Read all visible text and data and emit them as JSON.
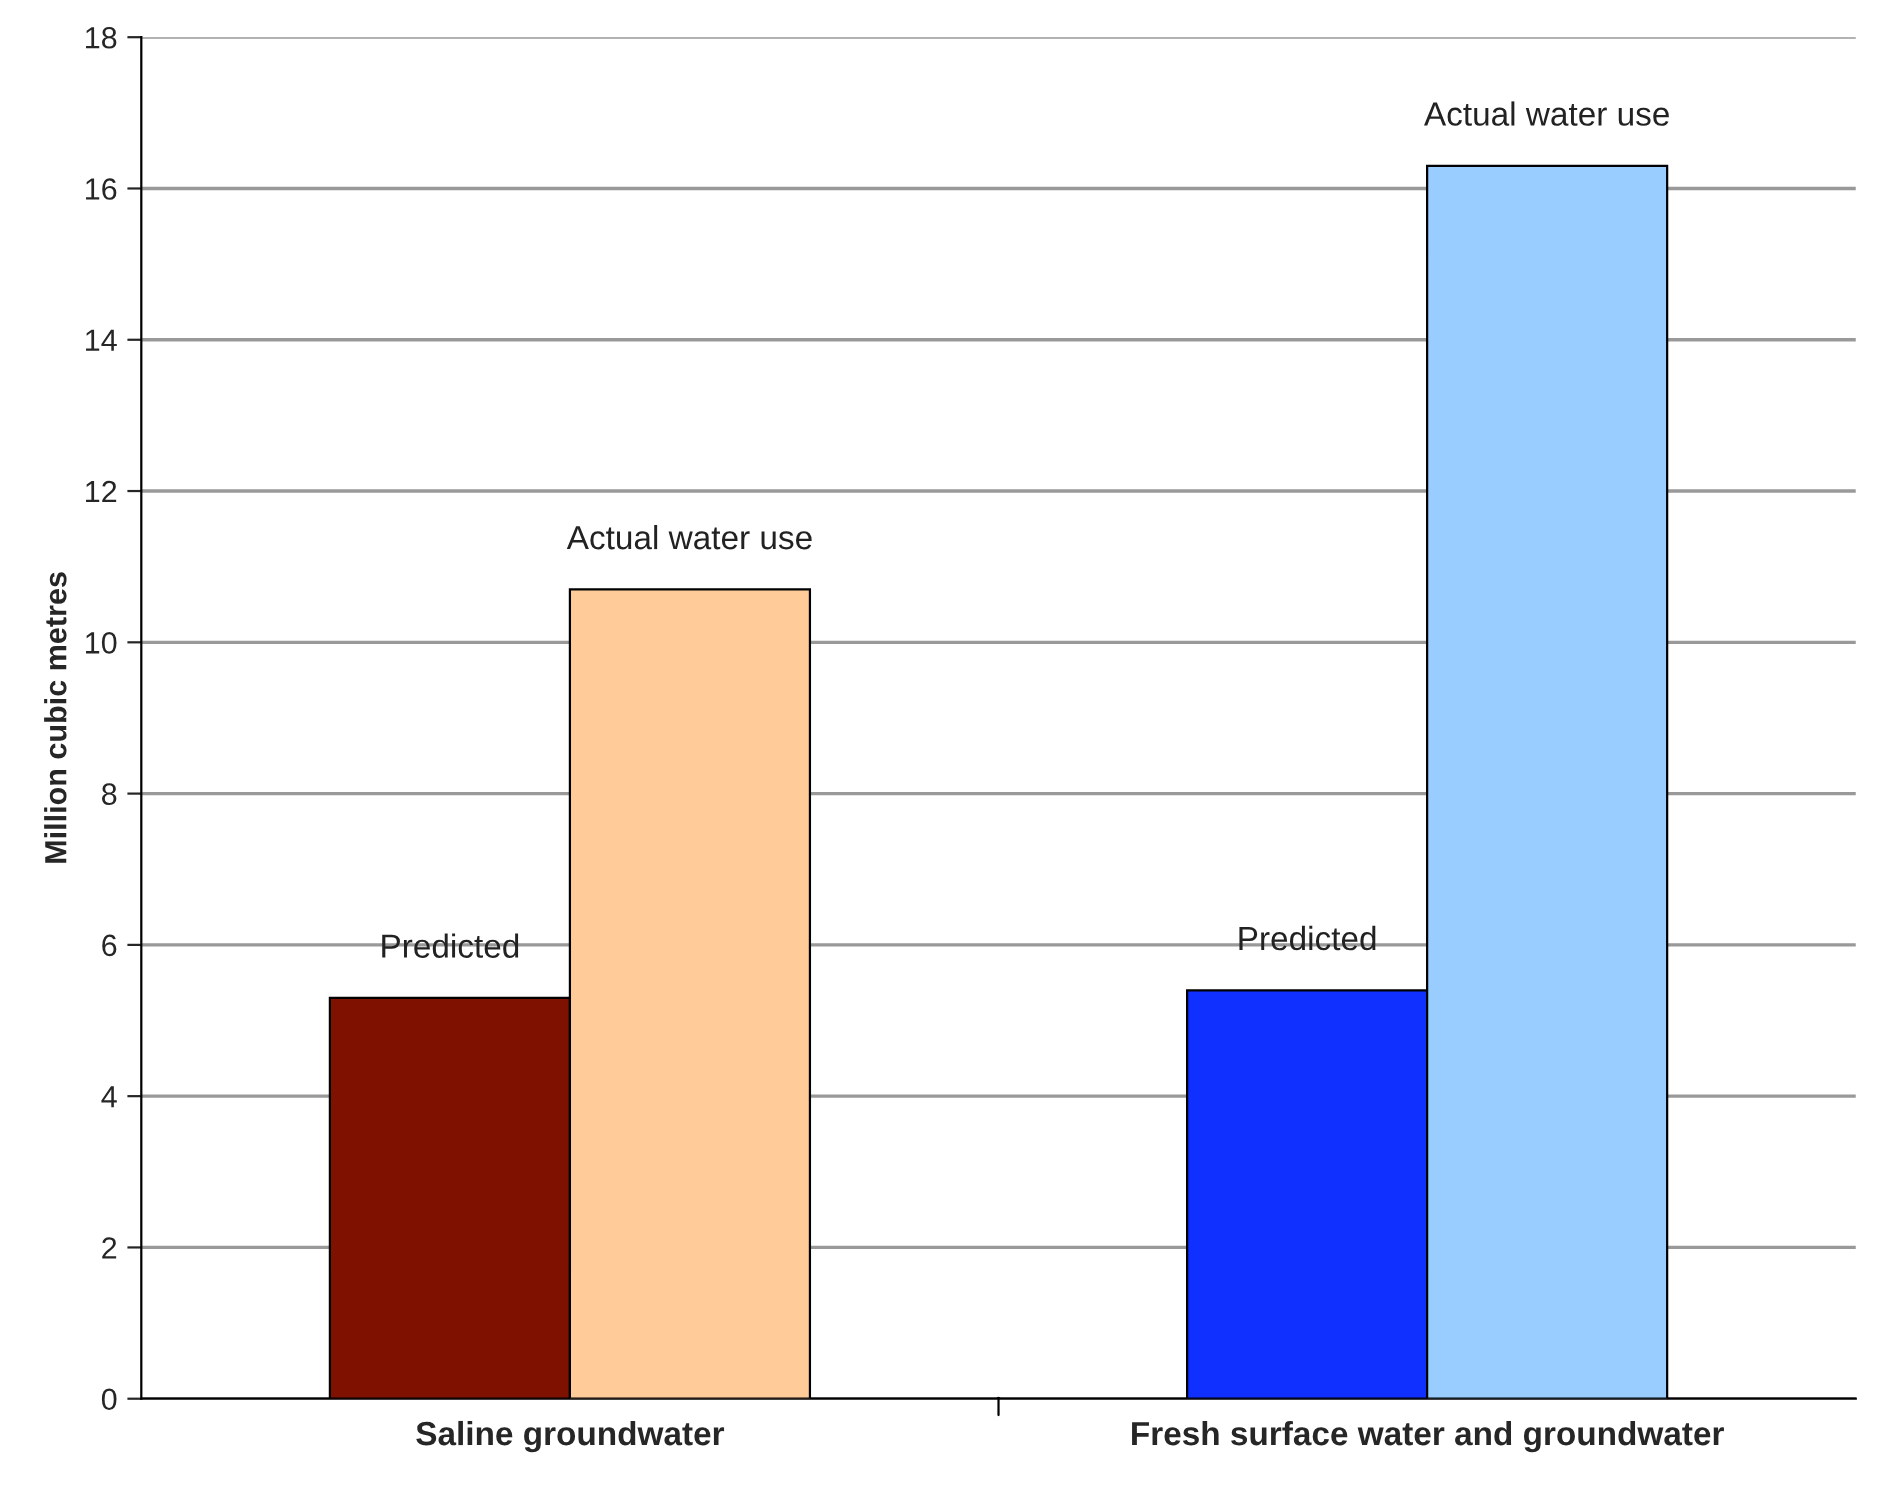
{
  "chart_data": {
    "type": "bar",
    "ylabel": "Million cubic metres",
    "categories": [
      "Saline groundwater",
      "Fresh surface water and groundwater"
    ],
    "series": [
      {
        "name": "Predicted",
        "colors": [
          "#7f1100",
          "#1030ff"
        ],
        "values": [
          5.3,
          5.4
        ]
      },
      {
        "name": "Actual water use",
        "colors": [
          "#ffcc99",
          "#99ccff"
        ],
        "values": [
          10.7,
          16.3
        ]
      }
    ],
    "ylim": [
      0,
      18
    ],
    "yticks": [
      0,
      2,
      4,
      6,
      8,
      10,
      12,
      14,
      16,
      18
    ],
    "grid": "y",
    "legend": false
  }
}
